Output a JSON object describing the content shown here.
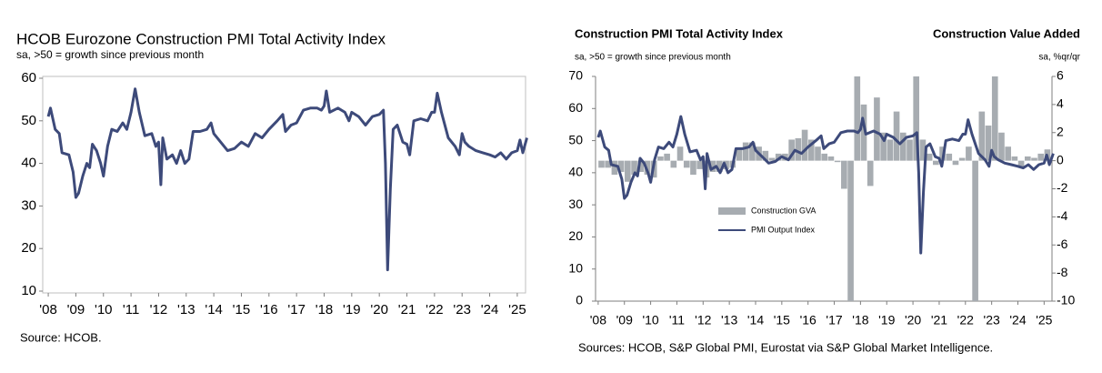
{
  "chart_data": [
    {
      "type": "line",
      "title": "HCOB Eurozone Construction PMI Total Activity Index",
      "subtitle": "sa, >50 = growth since previous month",
      "source": "Source: HCOB.",
      "xlim": [
        2007.8,
        2025.3
      ],
      "ylim": [
        10,
        60
      ],
      "yticks": [
        10,
        20,
        30,
        40,
        50,
        60
      ],
      "xticks": [
        {
          "value": 2008,
          "label": "'08"
        },
        {
          "value": 2009,
          "label": "'09"
        },
        {
          "value": 2010,
          "label": "'10"
        },
        {
          "value": 2011,
          "label": "'11"
        },
        {
          "value": 2012,
          "label": "'12"
        },
        {
          "value": 2013,
          "label": "'13"
        },
        {
          "value": 2014,
          "label": "'14"
        },
        {
          "value": 2015,
          "label": "'15"
        },
        {
          "value": 2016,
          "label": "'16"
        },
        {
          "value": 2017,
          "label": "'17"
        },
        {
          "value": 2018,
          "label": "'18"
        },
        {
          "value": 2019,
          "label": "'19"
        },
        {
          "value": 2020,
          "label": "'20"
        },
        {
          "value": 2021,
          "label": "'21"
        },
        {
          "value": 2022,
          "label": "'22"
        },
        {
          "value": 2023,
          "label": "'23"
        },
        {
          "value": 2024,
          "label": "'24"
        },
        {
          "value": 2025,
          "label": "'25"
        }
      ],
      "grid": false,
      "series": [
        {
          "color": "#3d4a7a",
          "x": [
            2008.0,
            2008.08,
            2008.25,
            2008.4,
            2008.5,
            2008.75,
            2008.9,
            2009.0,
            2009.1,
            2009.25,
            2009.4,
            2009.5,
            2009.6,
            2009.75,
            2009.9,
            2010.0,
            2010.15,
            2010.3,
            2010.5,
            2010.7,
            2010.85,
            2011.0,
            2011.15,
            2011.3,
            2011.5,
            2011.75,
            2011.9,
            2012.0,
            2012.08,
            2012.15,
            2012.3,
            2012.5,
            2012.65,
            2012.8,
            2012.95,
            2013.1,
            2013.25,
            2013.5,
            2013.75,
            2013.9,
            2014.0,
            2014.25,
            2014.5,
            2014.75,
            2015.0,
            2015.25,
            2015.5,
            2015.75,
            2016.0,
            2016.3,
            2016.5,
            2016.6,
            2016.8,
            2017.0,
            2017.25,
            2017.5,
            2017.75,
            2017.9,
            2018.0,
            2018.08,
            2018.2,
            2018.5,
            2018.75,
            2018.9,
            2019.0,
            2019.25,
            2019.5,
            2019.75,
            2020.0,
            2020.15,
            2020.22,
            2020.3,
            2020.4,
            2020.5,
            2020.65,
            2020.85,
            2021.0,
            2021.1,
            2021.25,
            2021.5,
            2021.75,
            2021.9,
            2022.0,
            2022.1,
            2022.25,
            2022.5,
            2022.75,
            2022.9,
            2023.0,
            2023.1,
            2023.25,
            2023.5,
            2023.75,
            2024.0,
            2024.2,
            2024.4,
            2024.6,
            2024.8,
            2025.0,
            2025.1,
            2025.2,
            2025.35
          ],
          "values": [
            51,
            53,
            48,
            47,
            42.5,
            42,
            38,
            32,
            33,
            37,
            40,
            39,
            44.5,
            43,
            40,
            37,
            44,
            48,
            47.5,
            49.5,
            48,
            52,
            57.5,
            52,
            46.5,
            47,
            44,
            45,
            35,
            46,
            41,
            42,
            40,
            43,
            40,
            41,
            47.5,
            47.5,
            48,
            49.5,
            47,
            45,
            43,
            43.5,
            45,
            44,
            47,
            46,
            48,
            50,
            51.5,
            47.5,
            49,
            49.5,
            52.5,
            53,
            53,
            52.5,
            53.5,
            57,
            52,
            53,
            52,
            50,
            52,
            51,
            49,
            51,
            51.5,
            52.5,
            40,
            15,
            34,
            48,
            49,
            45,
            44.5,
            42,
            50,
            50.5,
            50,
            52,
            52,
            56.5,
            52,
            46,
            44,
            42,
            47,
            45,
            44,
            43,
            42.5,
            42,
            41.5,
            42.5,
            41,
            42.5,
            43,
            45.5,
            42.5,
            46
          ]
        }
      ]
    },
    {
      "type": "combo",
      "title": "Construction PMI Total Activity Index",
      "subtitle": "sa, >50 = growth since previous month",
      "y2_title": "Construction Value Added",
      "y2_subtitle": "sa, %qr/qr",
      "source": "Sources: HCOB, S&P Global PMI, Eurostat via S&P Global Market Intelligence.",
      "xlim": [
        2007.9,
        2025.3
      ],
      "ylim": [
        0,
        70
      ],
      "yticks": [
        0,
        10,
        20,
        30,
        40,
        50,
        60,
        70
      ],
      "y2lim": [
        -10,
        6
      ],
      "y2ticks": [
        -10,
        -8,
        -6,
        -4,
        -2,
        0,
        2,
        4,
        6
      ],
      "xticks": [
        {
          "value": 2008,
          "label": "'08"
        },
        {
          "value": 2009,
          "label": "'09"
        },
        {
          "value": 2010,
          "label": "'10"
        },
        {
          "value": 2011,
          "label": "'11"
        },
        {
          "value": 2012,
          "label": "'12"
        },
        {
          "value": 2013,
          "label": "'13"
        },
        {
          "value": 2014,
          "label": "'14"
        },
        {
          "value": 2015,
          "label": "'15"
        },
        {
          "value": 2016,
          "label": "'16"
        },
        {
          "value": 2017,
          "label": "'17"
        },
        {
          "value": 2018,
          "label": "'18"
        },
        {
          "value": 2019,
          "label": "'19"
        },
        {
          "value": 2020,
          "label": "'20"
        },
        {
          "value": 2021,
          "label": "'21"
        },
        {
          "value": 2022,
          "label": "'22"
        },
        {
          "value": 2023,
          "label": "'23"
        },
        {
          "value": 2024,
          "label": "'24"
        },
        {
          "value": 2025,
          "label": "'25"
        }
      ],
      "grid": false,
      "legend": "left",
      "series": [
        {
          "name": "Construction GVA",
          "type": "bar",
          "axis": "y2",
          "color": "#a7acb1",
          "x": [
            2008.125,
            2008.375,
            2008.625,
            2008.875,
            2009.125,
            2009.375,
            2009.625,
            2009.875,
            2010.125,
            2010.375,
            2010.625,
            2010.875,
            2011.125,
            2011.375,
            2011.625,
            2011.875,
            2012.125,
            2012.375,
            2012.625,
            2012.875,
            2013.125,
            2013.375,
            2013.625,
            2013.875,
            2014.125,
            2014.375,
            2014.625,
            2014.875,
            2015.125,
            2015.375,
            2015.625,
            2015.875,
            2016.125,
            2016.375,
            2016.625,
            2016.875,
            2017.125,
            2017.375,
            2017.625,
            2017.875,
            2018.125,
            2018.375,
            2018.625,
            2018.875,
            2019.125,
            2019.375,
            2019.625,
            2019.875,
            2020.125,
            2020.375,
            2020.625,
            2020.875,
            2021.125,
            2021.375,
            2021.625,
            2021.875,
            2022.125,
            2022.375,
            2022.625,
            2022.875,
            2023.125,
            2023.375,
            2023.625,
            2023.875,
            2024.125,
            2024.375,
            2024.625,
            2024.875,
            2025.125
          ],
          "values": [
            -0.5,
            -0.5,
            -1,
            -0.8,
            -1.5,
            -1,
            -0.8,
            -1,
            -1.2,
            0.3,
            0.5,
            -0.5,
            1,
            -0.5,
            -1,
            -0.6,
            -1.2,
            -0.8,
            -0.8,
            -0.6,
            -0.5,
            0.8,
            1.3,
            1.3,
            1,
            0.7,
            0.2,
            0.5,
            0.5,
            1.5,
            1.6,
            2.2,
            1.5,
            1,
            0.5,
            0.3,
            -0.1,
            -2,
            -10,
            6,
            4,
            -1.8,
            4.5,
            2,
            1.5,
            3.5,
            2,
            1.5,
            6,
            1.5,
            0.5,
            -0.3,
            1,
            0.5,
            -0.3,
            0.2,
            1,
            -10,
            3.5,
            2.5,
            6,
            2,
            1,
            0.3,
            -0.5,
            0.3,
            0.2,
            0.5,
            0.8
          ]
        },
        {
          "name": "PMI Output Index",
          "type": "line",
          "color": "#3d4a7a",
          "x": [
            2008.0,
            2008.08,
            2008.25,
            2008.4,
            2008.5,
            2008.75,
            2008.9,
            2009.0,
            2009.1,
            2009.25,
            2009.4,
            2009.5,
            2009.6,
            2009.75,
            2009.9,
            2010.0,
            2010.15,
            2010.3,
            2010.5,
            2010.7,
            2010.85,
            2011.0,
            2011.15,
            2011.3,
            2011.5,
            2011.75,
            2011.9,
            2012.0,
            2012.08,
            2012.15,
            2012.3,
            2012.5,
            2012.65,
            2012.8,
            2012.95,
            2013.1,
            2013.25,
            2013.5,
            2013.75,
            2013.9,
            2014.0,
            2014.25,
            2014.5,
            2014.75,
            2015.0,
            2015.25,
            2015.5,
            2015.75,
            2016.0,
            2016.3,
            2016.5,
            2016.6,
            2016.8,
            2017.0,
            2017.25,
            2017.5,
            2017.75,
            2017.9,
            2018.0,
            2018.08,
            2018.2,
            2018.5,
            2018.75,
            2018.9,
            2019.0,
            2019.25,
            2019.5,
            2019.75,
            2020.0,
            2020.15,
            2020.22,
            2020.3,
            2020.4,
            2020.5,
            2020.65,
            2020.85,
            2021.0,
            2021.1,
            2021.25,
            2021.5,
            2021.75,
            2021.9,
            2022.0,
            2022.1,
            2022.25,
            2022.5,
            2022.75,
            2022.9,
            2023.0,
            2023.1,
            2023.25,
            2023.5,
            2023.75,
            2024.0,
            2024.2,
            2024.4,
            2024.6,
            2024.8,
            2025.0,
            2025.1,
            2025.2,
            2025.35
          ],
          "values": [
            51,
            53,
            48,
            47,
            42.5,
            42,
            38,
            32,
            33,
            37,
            40,
            39,
            44.5,
            43,
            40,
            37,
            44,
            48,
            47.5,
            49.5,
            48,
            52,
            57.5,
            52,
            46.5,
            47,
            44,
            45,
            35,
            46,
            41,
            42,
            40,
            43,
            40,
            41,
            47.5,
            47.5,
            48,
            49.5,
            47,
            45,
            43,
            43.5,
            45,
            44,
            47,
            46,
            48,
            50,
            51.5,
            47.5,
            49,
            49.5,
            52.5,
            53,
            53,
            52.5,
            53.5,
            57,
            52,
            53,
            52,
            50,
            52,
            51,
            49,
            51,
            51.5,
            52.5,
            40,
            15,
            34,
            48,
            49,
            45,
            44.5,
            42,
            50,
            50.5,
            50,
            52,
            52,
            56.5,
            52,
            46,
            44,
            42,
            47,
            45,
            44,
            43,
            42.5,
            42,
            41.5,
            42.5,
            41,
            42.5,
            43,
            45.5,
            42.5,
            46
          ]
        }
      ]
    }
  ]
}
